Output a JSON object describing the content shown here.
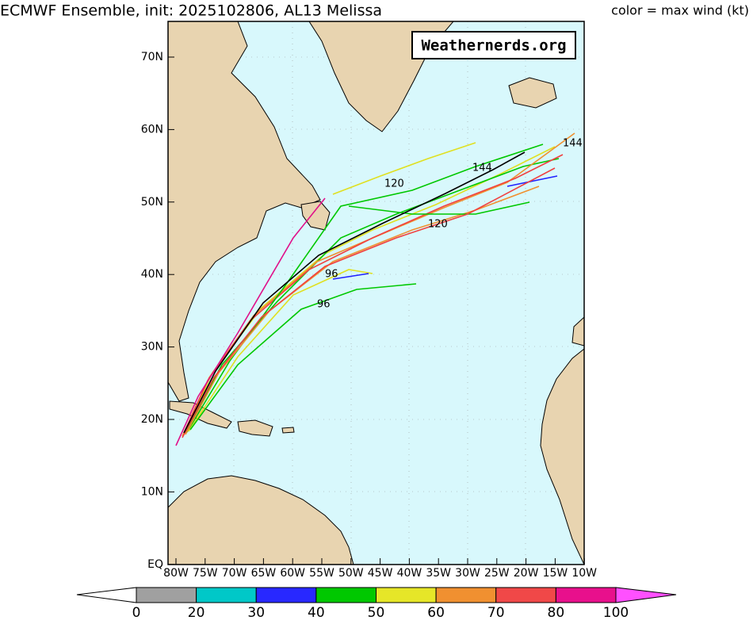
{
  "header": {
    "title": "ECMWF Ensemble, init: 2025102806, AL13 Melissa",
    "legend_note": "color = max wind (kt)"
  },
  "watermark": "Weathernerds.org",
  "axes": {
    "lat_labels": [
      "70N",
      "60N",
      "50N",
      "40N",
      "30N",
      "20N",
      "10N",
      "EQ"
    ],
    "lon_labels": [
      "80W",
      "75W",
      "70W",
      "65W",
      "60W",
      "55W",
      "50W",
      "45W",
      "40W",
      "35W",
      "30W",
      "25W",
      "20W",
      "15W",
      "10W"
    ]
  },
  "colorbar": {
    "labels": [
      "0",
      "20",
      "30",
      "40",
      "50",
      "60",
      "70",
      "80",
      "100"
    ]
  },
  "track_labels": [
    "120",
    "144",
    "144",
    "120",
    "96",
    "96"
  ]
}
